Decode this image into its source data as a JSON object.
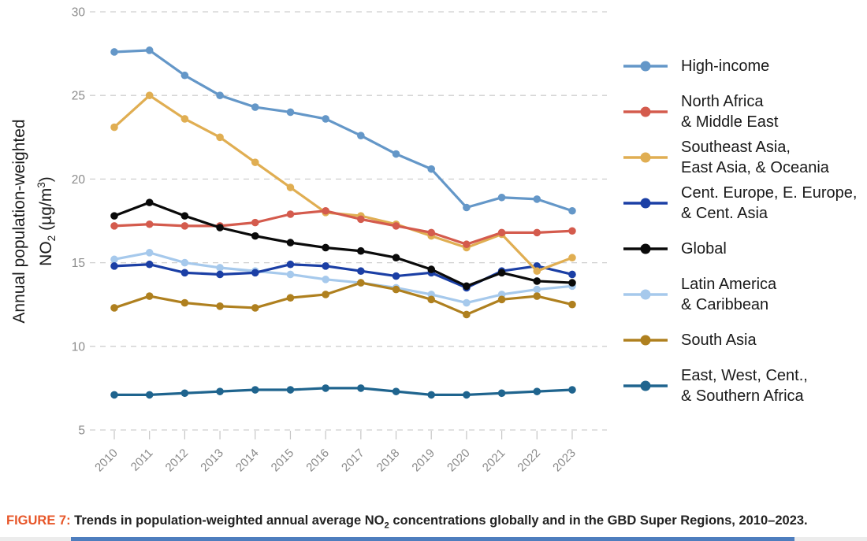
{
  "axis": {
    "y_label_line1": "Annual population-weighted",
    "y_label_no": "NO",
    "y_label_sub": "2",
    "y_label_unit_pre": " (µg/m",
    "y_label_sup": "3",
    "y_label_unit_post": ")"
  },
  "chart_data": {
    "type": "line",
    "x": [
      2010,
      2011,
      2012,
      2013,
      2014,
      2015,
      2016,
      2017,
      2018,
      2019,
      2020,
      2021,
      2022,
      2023
    ],
    "ylim": [
      5,
      30
    ],
    "y_ticks": [
      5,
      10,
      15,
      20,
      25,
      30
    ],
    "grid": "horizontal-dashed",
    "legend_position": "right",
    "series": [
      {
        "id": "high-income",
        "label": "High-income",
        "color": "#6497C8",
        "values": [
          27.6,
          27.7,
          26.2,
          25.0,
          24.3,
          24.0,
          23.6,
          22.6,
          21.5,
          20.6,
          18.3,
          18.9,
          18.8,
          18.1
        ]
      },
      {
        "id": "north-africa-middle-east",
        "label": "North Africa\n & Middle East",
        "color": "#D45B4D",
        "values": [
          17.2,
          17.3,
          17.2,
          17.2,
          17.4,
          17.9,
          18.1,
          17.6,
          17.2,
          16.8,
          16.1,
          16.8,
          16.8,
          16.9
        ]
      },
      {
        "id": "southeast-east-asia-oceania",
        "label": "Southeast Asia,\n East Asia, & Oceania",
        "color": "#E0AE52",
        "values": [
          23.1,
          25.0,
          23.6,
          22.5,
          21.0,
          19.5,
          18.0,
          17.8,
          17.3,
          16.6,
          15.9,
          16.7,
          14.5,
          15.3
        ]
      },
      {
        "id": "cent-europe-cent-asia",
        "label": "Cent. Europe, E. Europe,\n & Cent. Asia",
        "color": "#1B3FA5",
        "values": [
          14.8,
          14.9,
          14.4,
          14.3,
          14.4,
          14.9,
          14.8,
          14.5,
          14.2,
          14.4,
          13.5,
          14.5,
          14.8,
          14.3
        ]
      },
      {
        "id": "global",
        "label": "Global",
        "color": "#0A0A0A",
        "values": [
          17.8,
          18.6,
          17.8,
          17.1,
          16.6,
          16.2,
          15.9,
          15.7,
          15.3,
          14.6,
          13.6,
          14.4,
          13.9,
          13.8
        ]
      },
      {
        "id": "latin-america-caribbean",
        "label": "Latin America\n & Caribbean",
        "color": "#A6C9EC",
        "values": [
          15.2,
          15.6,
          15.0,
          14.7,
          14.5,
          14.3,
          14.0,
          13.8,
          13.5,
          13.1,
          12.6,
          13.1,
          13.4,
          13.6
        ]
      },
      {
        "id": "south-asia",
        "label": "South Asia",
        "color": "#AF801F",
        "values": [
          12.3,
          13.0,
          12.6,
          12.4,
          12.3,
          12.9,
          13.1,
          13.8,
          13.4,
          12.8,
          11.9,
          12.8,
          13.0,
          12.5
        ]
      },
      {
        "id": "east-west-cent-southern-africa",
        "label": "East, West, Cent.,\n & Southern Africa",
        "color": "#1F648E",
        "values": [
          7.1,
          7.1,
          7.2,
          7.3,
          7.4,
          7.4,
          7.5,
          7.5,
          7.3,
          7.1,
          7.1,
          7.2,
          7.3,
          7.4
        ]
      }
    ]
  },
  "caption": {
    "label": "FIGURE 7:",
    "part1": " Trends in population-weighted annual average NO",
    "sub": "2",
    "part2": " concentrations globally and in the GBD Super Regions, 2010–2023."
  }
}
